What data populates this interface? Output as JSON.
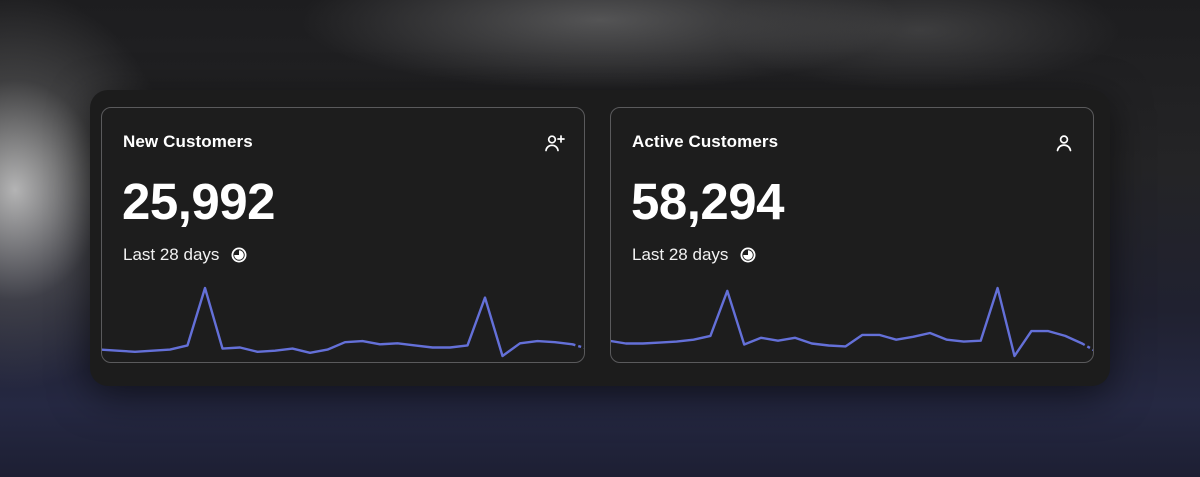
{
  "cards": [
    {
      "title": "New Customers",
      "value": "25,992",
      "period": "Last 28 days",
      "icon": "user-plus-icon",
      "accent": "#6470d8",
      "trend": [
        6,
        5,
        4,
        5,
        6,
        10,
        64,
        7,
        8,
        4,
        5,
        7,
        3,
        6,
        13,
        14,
        11,
        12,
        10,
        8,
        8,
        10,
        55,
        0,
        12,
        14,
        13,
        11,
        6
      ]
    },
    {
      "title": "Active Customers",
      "value": "58,294",
      "period": "Last 28 days",
      "icon": "user-icon",
      "accent": "#6470d8",
      "trend": [
        18,
        15,
        15,
        16,
        17,
        19,
        23,
        70,
        14,
        21,
        18,
        21,
        15,
        13,
        12,
        24,
        24,
        19,
        22,
        26,
        19,
        17,
        18,
        73,
        2,
        28,
        28,
        23,
        15,
        5
      ]
    }
  ]
}
